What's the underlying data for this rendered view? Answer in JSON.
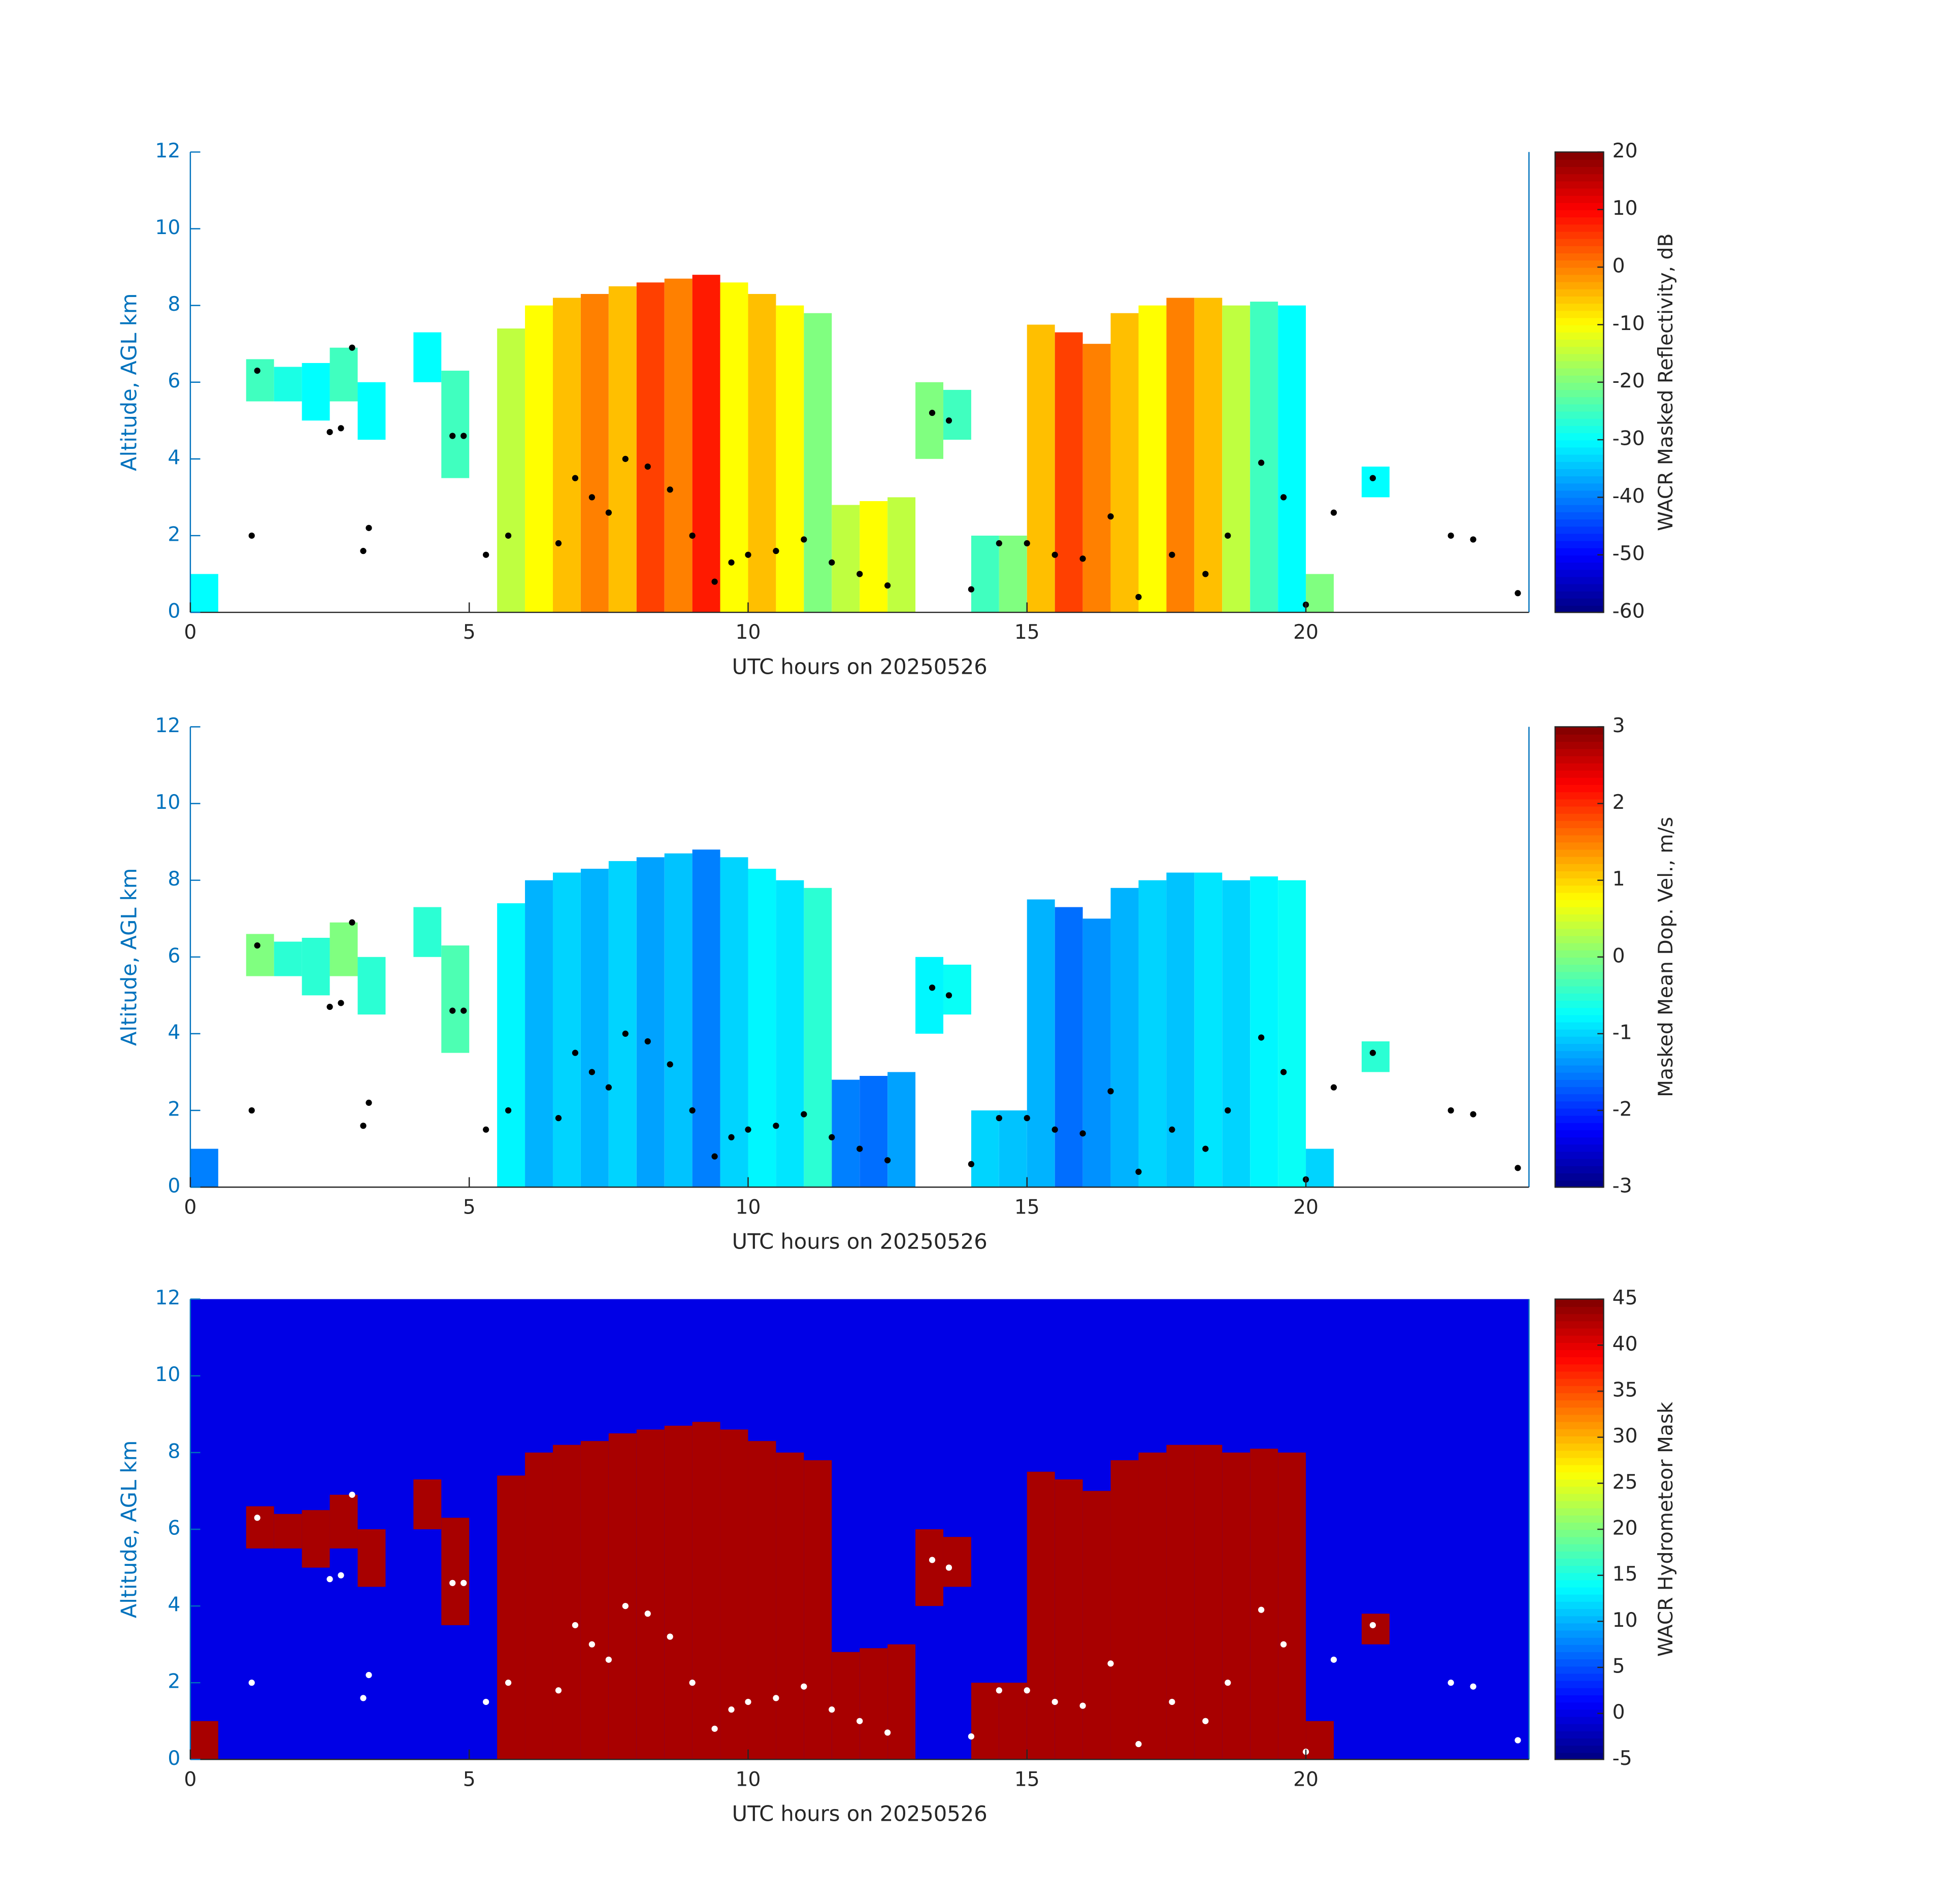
{
  "chart_data": [
    {
      "type": "heatmap",
      "xlabel": "UTC hours on 20250526",
      "ylabel": "Altitude, AGL km",
      "clabel": "WACR Masked Reflectivity, dB",
      "xlim": [
        0,
        24
      ],
      "ylim": [
        0,
        12
      ],
      "xticks": [
        0,
        5,
        10,
        15,
        20
      ],
      "yticks": [
        0,
        2,
        4,
        6,
        8,
        10,
        12
      ],
      "clim": [
        -60,
        20
      ],
      "cticks": [
        -60,
        -50,
        -40,
        -30,
        -20,
        -10,
        0,
        10,
        20
      ],
      "x": [
        0.25,
        0.75,
        1.25,
        1.75,
        2.25,
        2.75,
        3.25,
        3.75,
        4.25,
        4.75,
        5.25,
        5.75,
        6.25,
        6.75,
        7.25,
        7.75,
        8.25,
        8.75,
        9.25,
        9.75,
        10.25,
        10.75,
        11.25,
        11.75,
        12.25,
        12.75,
        13.25,
        13.75,
        14.25,
        14.75,
        15.25,
        15.75,
        16.25,
        16.75,
        17.25,
        17.75,
        18.25,
        18.75,
        19.25,
        19.75,
        20.25,
        20.75,
        21.25,
        21.75,
        22.25,
        22.75,
        23.25,
        23.75
      ],
      "bottom": [
        0,
        null,
        5.5,
        5.5,
        5.0,
        5.5,
        4.5,
        null,
        6.0,
        3.5,
        null,
        0,
        0,
        0,
        0,
        0,
        0,
        0,
        0,
        0,
        0,
        0,
        0,
        0,
        0,
        0,
        4.0,
        4.5,
        0,
        0,
        0,
        0,
        0,
        0,
        0,
        0,
        0,
        0,
        0,
        0,
        0,
        null,
        3.0,
        null,
        null,
        null,
        null,
        null
      ],
      "top": [
        1.0,
        null,
        6.6,
        6.4,
        6.5,
        6.9,
        6.0,
        null,
        7.3,
        6.3,
        null,
        7.4,
        8.0,
        8.2,
        8.3,
        8.5,
        8.6,
        8.7,
        8.8,
        8.6,
        8.3,
        8.0,
        7.8,
        2.8,
        2.9,
        3.0,
        6.0,
        5.8,
        2.0,
        2.0,
        7.5,
        7.3,
        7.0,
        7.8,
        8.0,
        8.2,
        8.2,
        8.0,
        8.1,
        8.0,
        1.0,
        null,
        3.8,
        null,
        null,
        null,
        null,
        null
      ],
      "values": [
        -30,
        null,
        -25,
        -28,
        -30,
        -25,
        -30,
        null,
        -30,
        -25,
        null,
        -15,
        -10,
        -5,
        0,
        -5,
        5,
        0,
        8,
        -10,
        -5,
        -10,
        -20,
        -15,
        -10,
        -15,
        -20,
        -25,
        -25,
        -20,
        -5,
        5,
        0,
        -5,
        -10,
        0,
        -5,
        -15,
        -25,
        -30,
        -20,
        null,
        -30,
        null,
        null,
        null,
        null,
        null
      ],
      "points": {
        "color": "#000000",
        "x": [
          1.1,
          1.2,
          2.5,
          2.7,
          2.9,
          3.1,
          3.2,
          4.7,
          4.9,
          5.3,
          5.7,
          6.6,
          6.9,
          7.2,
          7.5,
          7.8,
          8.2,
          8.6,
          9.0,
          9.4,
          9.7,
          10.0,
          10.5,
          11.0,
          11.5,
          12.0,
          12.5,
          13.3,
          13.6,
          14.0,
          14.5,
          15.0,
          15.5,
          16.0,
          16.5,
          17.0,
          17.6,
          18.2,
          18.6,
          19.2,
          19.6,
          20.0,
          20.5,
          21.2,
          22.6,
          23.0,
          23.8
        ],
        "y": [
          2.0,
          6.3,
          4.7,
          4.8,
          6.9,
          1.6,
          2.2,
          4.6,
          4.6,
          1.5,
          2.0,
          1.8,
          3.5,
          3.0,
          2.6,
          4.0,
          3.8,
          3.2,
          2.0,
          0.8,
          1.3,
          1.5,
          1.6,
          1.9,
          1.3,
          1.0,
          0.7,
          5.2,
          5.0,
          0.6,
          1.8,
          1.8,
          1.5,
          1.4,
          2.5,
          0.4,
          1.5,
          1.0,
          2.0,
          3.9,
          3.0,
          0.2,
          2.6,
          3.5,
          2.0,
          1.9,
          0.5
        ]
      }
    },
    {
      "type": "heatmap",
      "xlabel": "UTC hours on 20250526",
      "ylabel": "Altitude, AGL km",
      "clabel": "Masked Mean Dop. Vel., m/s",
      "xlim": [
        0,
        24
      ],
      "ylim": [
        0,
        12
      ],
      "xticks": [
        0,
        5,
        10,
        15,
        20
      ],
      "yticks": [
        0,
        2,
        4,
        6,
        8,
        10,
        12
      ],
      "clim": [
        -3,
        3
      ],
      "cticks": [
        -3,
        -2,
        -1,
        0,
        1,
        2,
        3
      ],
      "x": [
        0.25,
        0.75,
        1.25,
        1.75,
        2.25,
        2.75,
        3.25,
        3.75,
        4.25,
        4.75,
        5.25,
        5.75,
        6.25,
        6.75,
        7.25,
        7.75,
        8.25,
        8.75,
        9.25,
        9.75,
        10.25,
        10.75,
        11.25,
        11.75,
        12.25,
        12.75,
        13.25,
        13.75,
        14.25,
        14.75,
        15.25,
        15.75,
        16.25,
        16.75,
        17.25,
        17.75,
        18.25,
        18.75,
        19.25,
        19.75,
        20.25,
        20.75,
        21.25,
        21.75,
        22.25,
        22.75,
        23.25,
        23.75
      ],
      "bottom": [
        0,
        null,
        5.5,
        5.5,
        5.0,
        5.5,
        4.5,
        null,
        6.0,
        3.5,
        null,
        0,
        0,
        0,
        0,
        0,
        0,
        0,
        0,
        0,
        0,
        0,
        0,
        0,
        0,
        0,
        4.0,
        4.5,
        0,
        0,
        0,
        0,
        0,
        0,
        0,
        0,
        0,
        0,
        0,
        0,
        0,
        null,
        3.0,
        null,
        null,
        null,
        null,
        null
      ],
      "top": [
        1.0,
        null,
        6.6,
        6.4,
        6.5,
        6.9,
        6.0,
        null,
        7.3,
        6.3,
        null,
        7.4,
        8.0,
        8.2,
        8.3,
        8.5,
        8.6,
        8.7,
        8.8,
        8.6,
        8.3,
        8.0,
        7.8,
        2.8,
        2.9,
        3.0,
        6.0,
        5.8,
        2.0,
        2.0,
        7.5,
        7.3,
        7.0,
        7.8,
        8.0,
        8.2,
        8.2,
        8.0,
        8.1,
        8.0,
        1.0,
        null,
        3.8,
        null,
        null,
        null,
        null,
        null
      ],
      "values": [
        -1.5,
        null,
        0,
        -0.5,
        -0.5,
        0,
        -0.5,
        null,
        -0.5,
        -0.3,
        null,
        -0.8,
        -1.2,
        -1.0,
        -1.2,
        -1.0,
        -1.3,
        -1.1,
        -1.5,
        -1.0,
        -0.8,
        -0.9,
        -0.5,
        -1.5,
        -1.6,
        -1.3,
        -0.8,
        -0.7,
        -1.0,
        -1.1,
        -1.2,
        -1.6,
        -1.4,
        -1.2,
        -1.0,
        -1.1,
        -0.9,
        -1.0,
        -0.8,
        -0.7,
        -1.0,
        null,
        -0.5,
        null,
        null,
        null,
        null,
        null
      ],
      "points": {
        "color": "#000000",
        "x": [
          1.1,
          1.2,
          2.5,
          2.7,
          2.9,
          3.1,
          3.2,
          4.7,
          4.9,
          5.3,
          5.7,
          6.6,
          6.9,
          7.2,
          7.5,
          7.8,
          8.2,
          8.6,
          9.0,
          9.4,
          9.7,
          10.0,
          10.5,
          11.0,
          11.5,
          12.0,
          12.5,
          13.3,
          13.6,
          14.0,
          14.5,
          15.0,
          15.5,
          16.0,
          16.5,
          17.0,
          17.6,
          18.2,
          18.6,
          19.2,
          19.6,
          20.0,
          20.5,
          21.2,
          22.6,
          23.0,
          23.8
        ],
        "y": [
          2.0,
          6.3,
          4.7,
          4.8,
          6.9,
          1.6,
          2.2,
          4.6,
          4.6,
          1.5,
          2.0,
          1.8,
          3.5,
          3.0,
          2.6,
          4.0,
          3.8,
          3.2,
          2.0,
          0.8,
          1.3,
          1.5,
          1.6,
          1.9,
          1.3,
          1.0,
          0.7,
          5.2,
          5.0,
          0.6,
          1.8,
          1.8,
          1.5,
          1.4,
          2.5,
          0.4,
          1.5,
          1.0,
          2.0,
          3.9,
          3.0,
          0.2,
          2.6,
          3.5,
          2.0,
          1.9,
          0.5
        ]
      }
    },
    {
      "type": "heatmap",
      "xlabel": "UTC hours on 20250526",
      "ylabel": "Altitude, AGL km",
      "clabel": "WACR Hydrometeor Mask",
      "xlim": [
        0,
        24
      ],
      "ylim": [
        0,
        12
      ],
      "xticks": [
        0,
        5,
        10,
        15,
        20
      ],
      "yticks": [
        0,
        2,
        4,
        6,
        8,
        10,
        12
      ],
      "clim": [
        -5,
        45
      ],
      "cticks": [
        -5,
        0,
        5,
        10,
        15,
        20,
        25,
        30,
        35,
        40,
        45
      ],
      "background_value": 0,
      "x": [
        0.25,
        0.75,
        1.25,
        1.75,
        2.25,
        2.75,
        3.25,
        3.75,
        4.25,
        4.75,
        5.25,
        5.75,
        6.25,
        6.75,
        7.25,
        7.75,
        8.25,
        8.75,
        9.25,
        9.75,
        10.25,
        10.75,
        11.25,
        11.75,
        12.25,
        12.75,
        13.25,
        13.75,
        14.25,
        14.75,
        15.25,
        15.75,
        16.25,
        16.75,
        17.25,
        17.75,
        18.25,
        18.75,
        19.25,
        19.75,
        20.25,
        20.75,
        21.25,
        21.75,
        22.25,
        22.75,
        23.25,
        23.75
      ],
      "bottom": [
        0,
        null,
        5.5,
        5.5,
        5.0,
        5.5,
        4.5,
        null,
        6.0,
        3.5,
        null,
        0,
        0,
        0,
        0,
        0,
        0,
        0,
        0,
        0,
        0,
        0,
        0,
        0,
        0,
        0,
        4.0,
        4.5,
        0,
        0,
        0,
        0,
        0,
        0,
        0,
        0,
        0,
        0,
        0,
        0,
        0,
        null,
        3.0,
        null,
        null,
        null,
        null,
        null
      ],
      "top": [
        1.0,
        null,
        6.6,
        6.4,
        6.5,
        6.9,
        6.0,
        null,
        7.3,
        6.3,
        null,
        7.4,
        8.0,
        8.2,
        8.3,
        8.5,
        8.6,
        8.7,
        8.8,
        8.6,
        8.3,
        8.0,
        7.8,
        2.8,
        2.9,
        3.0,
        6.0,
        5.8,
        2.0,
        2.0,
        7.5,
        7.3,
        7.0,
        7.8,
        8.0,
        8.2,
        8.2,
        8.0,
        8.1,
        8.0,
        1.0,
        null,
        3.8,
        null,
        null,
        null,
        null,
        null
      ],
      "values": [
        43,
        null,
        43,
        43,
        43,
        43,
        43,
        null,
        43,
        43,
        null,
        43,
        43,
        43,
        43,
        43,
        43,
        43,
        43,
        43,
        43,
        43,
        43,
        43,
        43,
        43,
        43,
        43,
        43,
        43,
        43,
        43,
        43,
        43,
        43,
        43,
        43,
        43,
        43,
        43,
        43,
        null,
        43,
        null,
        null,
        null,
        null,
        null
      ],
      "points": {
        "color": "#ffffff",
        "x": [
          1.1,
          1.2,
          2.5,
          2.7,
          2.9,
          3.1,
          3.2,
          4.7,
          4.9,
          5.3,
          5.7,
          6.6,
          6.9,
          7.2,
          7.5,
          7.8,
          8.2,
          8.6,
          9.0,
          9.4,
          9.7,
          10.0,
          10.5,
          11.0,
          11.5,
          12.0,
          12.5,
          13.3,
          13.6,
          14.0,
          14.5,
          15.0,
          15.5,
          16.0,
          16.5,
          17.0,
          17.6,
          18.2,
          18.6,
          19.2,
          19.6,
          20.0,
          20.5,
          21.2,
          22.6,
          23.0,
          23.8
        ],
        "y": [
          2.0,
          6.3,
          4.7,
          4.8,
          6.9,
          1.6,
          2.2,
          4.6,
          4.6,
          1.5,
          2.0,
          1.8,
          3.5,
          3.0,
          2.6,
          4.0,
          3.8,
          3.2,
          2.0,
          0.8,
          1.3,
          1.5,
          1.6,
          1.9,
          1.3,
          1.0,
          0.7,
          5.2,
          5.0,
          0.6,
          1.8,
          1.8,
          1.5,
          1.4,
          2.5,
          0.4,
          1.5,
          1.0,
          2.0,
          3.9,
          3.0,
          0.2,
          2.6,
          3.5,
          2.0,
          1.9,
          0.5
        ]
      }
    }
  ]
}
